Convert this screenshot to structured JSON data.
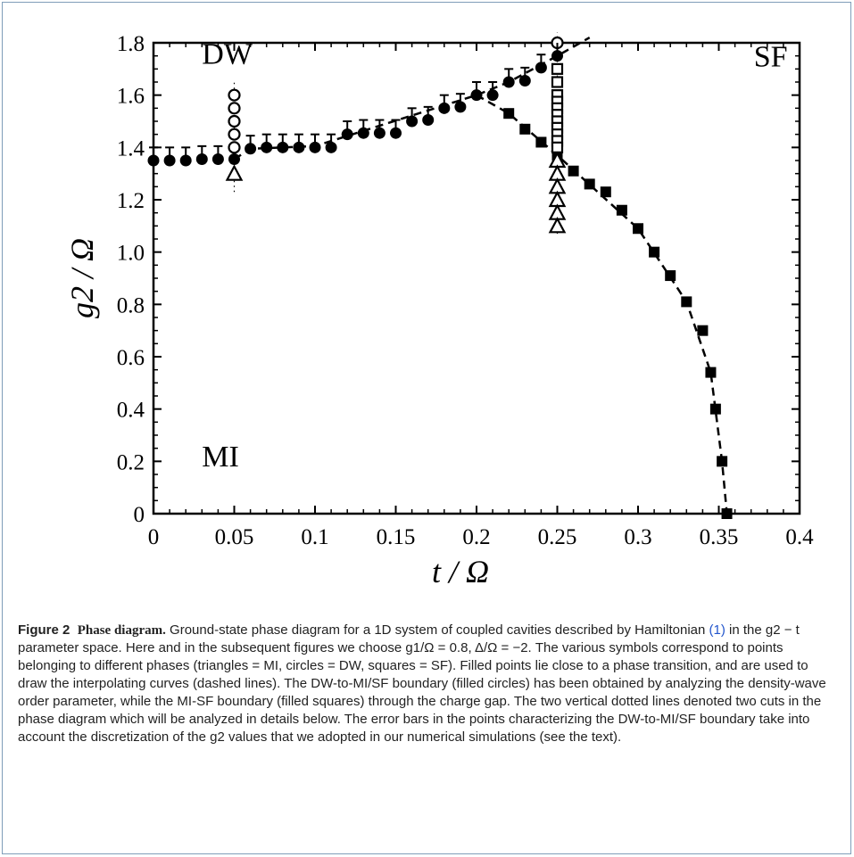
{
  "chart_data": {
    "type": "scatter",
    "xlabel": "t / Ω",
    "ylabel": "g2 / Ω",
    "xlim": [
      0,
      0.4
    ],
    "ylim": [
      0,
      1.8
    ],
    "xticks": [
      "0",
      "0.05",
      "0.1",
      "0.15",
      "0.2",
      "0.25",
      "0.3",
      "0.35",
      "0.4"
    ],
    "xtick_values": [
      0,
      0.05,
      0.1,
      0.15,
      0.2,
      0.25,
      0.3,
      0.35,
      0.4
    ],
    "yticks": [
      "0",
      "0.2",
      "0.4",
      "0.6",
      "0.8",
      "1.0",
      "1.2",
      "1.4",
      "1.6",
      "1.8"
    ],
    "ytick_values": [
      0,
      0.2,
      0.4,
      0.6,
      0.8,
      1.0,
      1.2,
      1.4,
      1.6,
      1.8
    ],
    "grid": false,
    "region_labels": [
      {
        "text": "DW",
        "x": 0.03,
        "y": 1.72
      },
      {
        "text": "SF",
        "x": 0.375,
        "y": 1.71
      },
      {
        "text": "MI",
        "x": 0.03,
        "y": 0.18
      }
    ],
    "series": [
      {
        "marker": "filled-circle",
        "error_bar": 0.05,
        "x": [
          0,
          0.01,
          0.02,
          0.03,
          0.04,
          0.05,
          0.06,
          0.07,
          0.08,
          0.09,
          0.1,
          0.11,
          0.12,
          0.13,
          0.14,
          0.15,
          0.16,
          0.17,
          0.18,
          0.19,
          0.2,
          0.21,
          0.22,
          0.23,
          0.24,
          0.25
        ],
        "y": [
          1.35,
          1.35,
          1.35,
          1.355,
          1.355,
          1.355,
          1.395,
          1.4,
          1.4,
          1.4,
          1.4,
          1.4,
          1.45,
          1.455,
          1.455,
          1.455,
          1.5,
          1.505,
          1.55,
          1.555,
          1.6,
          1.6,
          1.65,
          1.655,
          1.705,
          1.75
        ]
      },
      {
        "marker": "filled-square",
        "x": [
          0.22,
          0.23,
          0.24,
          0.25,
          0.26,
          0.27,
          0.28,
          0.29,
          0.3,
          0.31,
          0.32,
          0.33,
          0.34,
          0.345,
          0.348,
          0.352,
          0.355
        ],
        "y": [
          1.53,
          1.47,
          1.42,
          1.37,
          1.31,
          1.26,
          1.23,
          1.16,
          1.09,
          1.0,
          0.91,
          0.81,
          0.7,
          0.54,
          0.4,
          0.2,
          0.0
        ]
      },
      {
        "marker": "open-circle",
        "x": [
          0.05,
          0.05,
          0.05,
          0.05,
          0.05,
          0.25
        ],
        "y": [
          1.6,
          1.55,
          1.5,
          1.45,
          1.4,
          1.8
        ]
      },
      {
        "marker": "open-square",
        "x": [
          0.25,
          0.25,
          0.25,
          0.25,
          0.25,
          0.25,
          0.25,
          0.25,
          0.25,
          0.25,
          0.25
        ],
        "y": [
          1.7,
          1.65,
          1.6,
          1.575,
          1.55,
          1.525,
          1.5,
          1.475,
          1.45,
          1.425,
          1.4
        ]
      },
      {
        "marker": "open-triangle",
        "x": [
          0.05,
          0.25,
          0.25,
          0.25,
          0.25,
          0.25,
          0.25
        ],
        "y": [
          1.3,
          1.35,
          1.3,
          1.25,
          1.2,
          1.15,
          1.1
        ]
      }
    ],
    "dashed_curves": [
      {
        "x": [
          0.05,
          0.06,
          0.1,
          0.2,
          0.22,
          0.25,
          0.27
        ],
        "y": [
          1.355,
          1.395,
          1.405,
          1.6,
          1.65,
          1.75,
          1.82
        ]
      },
      {
        "x": [
          0.2,
          0.22,
          0.25,
          0.3,
          0.33,
          0.345,
          0.352,
          0.355
        ],
        "y": [
          1.6,
          1.53,
          1.37,
          1.09,
          0.81,
          0.54,
          0.2,
          0.0
        ]
      }
    ],
    "dotted_cuts": [
      {
        "x": 0.05,
        "y": [
          1.23,
          1.66
        ]
      },
      {
        "x": 0.25,
        "y": [
          1.07,
          1.84
        ]
      }
    ]
  },
  "caption": {
    "label": "Figure 2",
    "heading": "Phase diagram.",
    "t1": "Ground-state phase diagram for a 1D system of coupled cavities described by Hamiltonian ",
    "ref": "(1)",
    "t2": " in the g2 − t parameter space. Here and in the subsequent figures we choose g1/Ω = 0.8, Δ/Ω = −2. The various symbols correspond to points belonging to different phases (triangles = MI, circles = DW, squares = SF). Filled points lie close to a phase transition, and are used to draw the interpolating curves (dashed lines). The DW-to-MI/SF boundary (filled circles) has been obtained by analyzing the density-wave order parameter, while the MI-SF boundary (filled squares) through the charge gap. The two vertical dotted lines denoted two cuts in the phase diagram which will be analyzed in details below. The error bars in the points characterizing the DW-to-MI/SF boundary take into account the discretization of the g2 values that we adopted in our numerical simulations (see the text)."
  }
}
